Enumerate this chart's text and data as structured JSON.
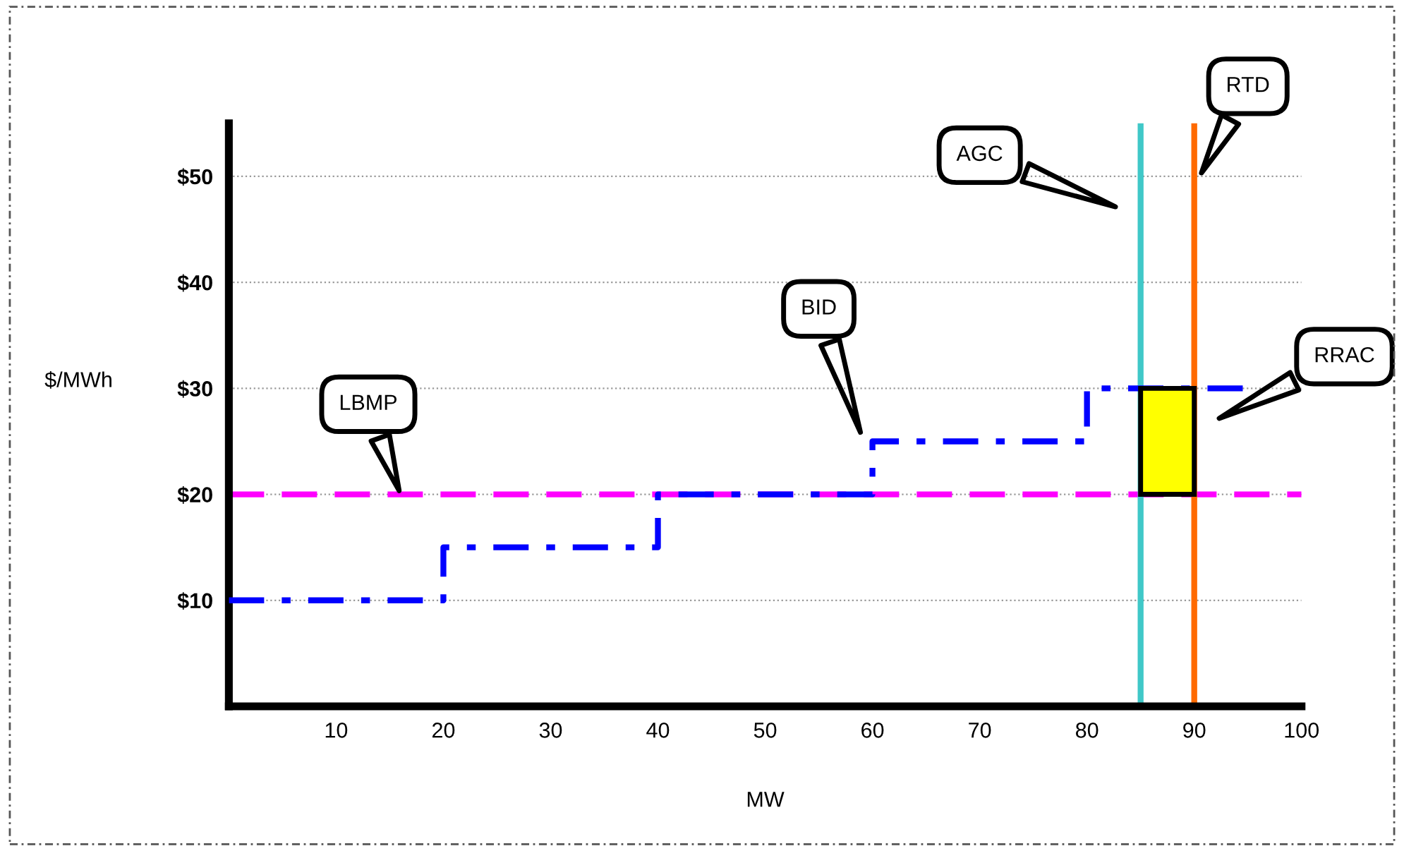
{
  "chart_data": {
    "type": "step",
    "xlabel": "MW",
    "ylabel": "$/MWh",
    "series": [
      {
        "color": "#0000ff",
        "x": [
          0,
          20,
          40,
          60,
          80,
          95
        ],
        "values": [
          10,
          15,
          20,
          25,
          30,
          30
        ],
        "line_style": "dashdot"
      },
      {
        "type": "bar",
        "color": "#ffff00",
        "x": [
          87.5
        ],
        "values": [
          10
        ],
        "base": [
          20
        ]
      }
    ],
    "ref_lines": [
      {
        "axis": "y",
        "value": 20,
        "color": "#ff00ff",
        "line_style": "dashed"
      },
      {
        "axis": "x",
        "value": 85,
        "color": "#40c8c8",
        "line_style": "solid"
      },
      {
        "axis": "x",
        "value": 90,
        "color": "#ff6a00",
        "line_style": "solid"
      }
    ],
    "annotations": [
      "LBMP",
      "BID",
      "AGC",
      "RTD",
      "RRAC"
    ],
    "xlim": [
      0,
      100
    ],
    "xticks": [
      10,
      20,
      30,
      40,
      50,
      60,
      70,
      80,
      90,
      100
    ],
    "ylim": [
      0,
      55
    ],
    "yticks": [
      {
        "value": 10,
        "label": "$10"
      },
      {
        "value": 20,
        "label": "$20"
      },
      {
        "value": 30,
        "label": "$30"
      },
      {
        "value": 40,
        "label": "$40"
      },
      {
        "value": 50,
        "label": "$50"
      }
    ],
    "grid": "y"
  }
}
